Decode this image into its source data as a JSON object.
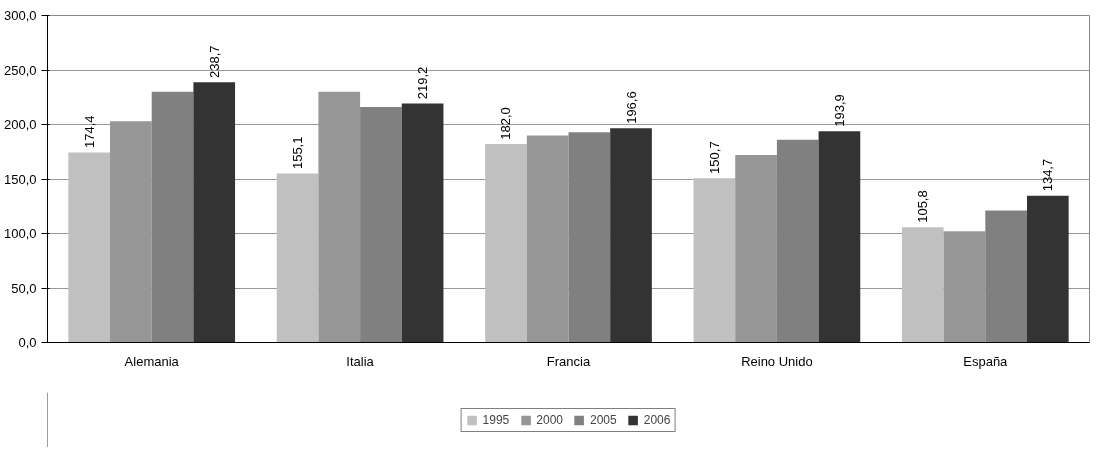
{
  "chart_data": {
    "type": "bar",
    "categories": [
      "Alemania",
      "Italia",
      "Francia",
      "Reino Unido",
      "España"
    ],
    "series": [
      {
        "name": "1995",
        "color": "#c0c0c0",
        "values": [
          174.4,
          155.1,
          182.0,
          150.7,
          105.8
        ],
        "value_labels": [
          "174,4",
          "155,1",
          "182,0",
          "150,7",
          "105,8"
        ]
      },
      {
        "name": "2000",
        "color": "#969696",
        "values": [
          203,
          230,
          190,
          172,
          102
        ],
        "value_labels": [
          null,
          null,
          null,
          null,
          null
        ]
      },
      {
        "name": "2005",
        "color": "#808080",
        "values": [
          230,
          216,
          193,
          186,
          121
        ],
        "value_labels": [
          null,
          null,
          null,
          null,
          null
        ]
      },
      {
        "name": "2006",
        "color": "#333333",
        "values": [
          238.7,
          219.2,
          196.6,
          193.9,
          134.7
        ],
        "value_labels": [
          "238,7",
          "219,2",
          "196,6",
          "193,9",
          "134,7"
        ]
      }
    ],
    "ylim": [
      0,
      300
    ],
    "yticks": [
      {
        "value": 0,
        "label": "0,0"
      },
      {
        "value": 50,
        "label": "50,0"
      },
      {
        "value": 100,
        "label": "100,0"
      },
      {
        "value": 150,
        "label": "150,0"
      },
      {
        "value": 200,
        "label": "200,0"
      },
      {
        "value": 250,
        "label": "250,0"
      },
      {
        "value": 300,
        "label": "300,0"
      }
    ],
    "grid": "y",
    "legend": "bottom"
  }
}
